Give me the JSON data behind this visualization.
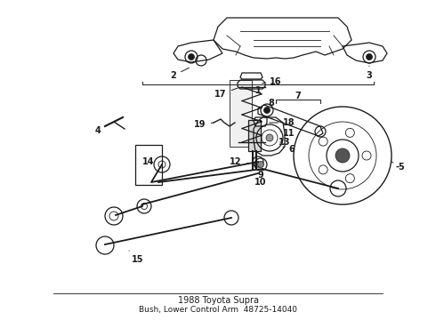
{
  "title": "1988 Toyota Supra",
  "subtitle": "Bush, Lower Control Arm",
  "part_number": "48725-14040",
  "bg": "#ffffff",
  "lc": "#1a1a1a",
  "fig_width": 4.9,
  "fig_height": 3.6,
  "dpi": 100
}
